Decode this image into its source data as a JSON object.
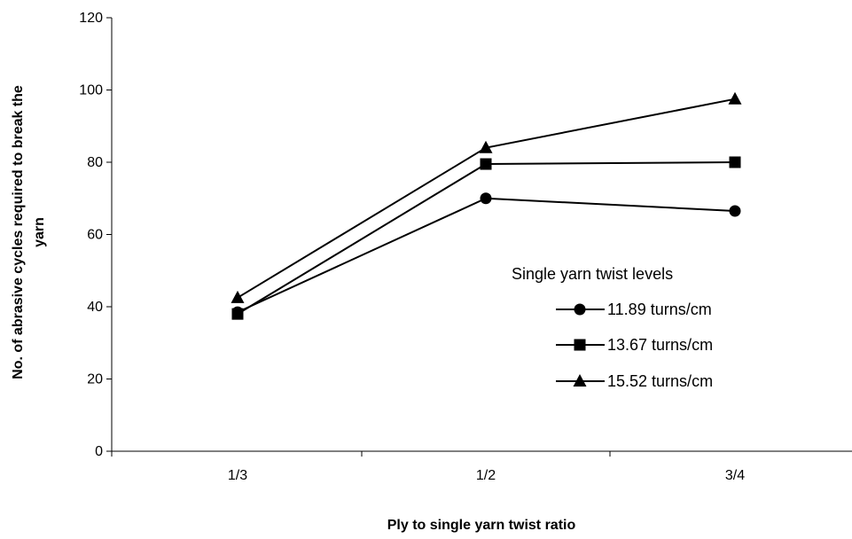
{
  "chart_data": {
    "type": "line",
    "categories": [
      "1/3",
      "1/2",
      "3/4"
    ],
    "series": [
      {
        "name": "11.89 turns/cm",
        "marker": "circle",
        "values": [
          38.5,
          70,
          66.5
        ]
      },
      {
        "name": "13.67 turns/cm",
        "marker": "square",
        "values": [
          38,
          79.5,
          80
        ]
      },
      {
        "name": "15.52 turns/cm",
        "marker": "triangle",
        "values": [
          42.5,
          84,
          97.5
        ]
      }
    ],
    "xlabel": "Ply to single yarn twist ratio",
    "ylabel_lines": [
      "No. of abrasive cycles required to break the",
      "yarn"
    ],
    "ylim": [
      0,
      120
    ],
    "yticks": [
      0,
      20,
      40,
      60,
      80,
      100,
      120
    ],
    "legend": {
      "title": "Single yarn twist levels",
      "position": "right"
    },
    "grid": false,
    "line_color": "#000000"
  }
}
